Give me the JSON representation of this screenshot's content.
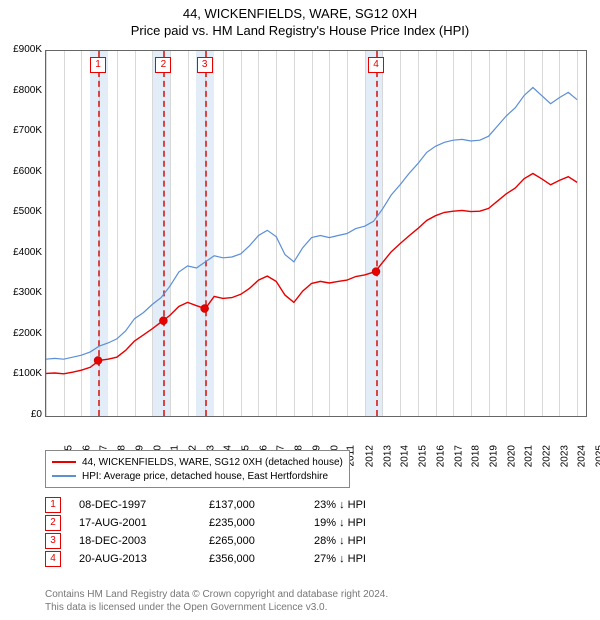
{
  "title": "44, WICKENFIELDS, WARE, SG12 0XH",
  "subtitle": "Price paid vs. HM Land Registry's House Price Index (HPI)",
  "chart": {
    "type": "line",
    "x_domain": [
      1995,
      2025.5
    ],
    "y_domain": [
      0,
      900000
    ],
    "y_ticks": [
      0,
      100000,
      200000,
      300000,
      400000,
      500000,
      600000,
      700000,
      800000,
      900000
    ],
    "y_tick_labels": [
      "£0",
      "£100K",
      "£200K",
      "£300K",
      "£400K",
      "£500K",
      "£600K",
      "£700K",
      "£800K",
      "£900K"
    ],
    "x_ticks": [
      1995,
      1996,
      1997,
      1998,
      1999,
      2000,
      2001,
      2002,
      2003,
      2004,
      2005,
      2006,
      2007,
      2008,
      2009,
      2010,
      2011,
      2012,
      2013,
      2014,
      2015,
      2016,
      2017,
      2018,
      2019,
      2020,
      2021,
      2022,
      2023,
      2024,
      2025
    ],
    "highlight_bands": [
      [
        1997.5,
        1998.5
      ],
      [
        2001,
        2002
      ],
      [
        2003.5,
        2004.5
      ],
      [
        2013,
        2014
      ]
    ],
    "grid_color": "#d8d8d8",
    "background_color": "#ffffff",
    "series": [
      {
        "name": "hpi",
        "color": "#5b8fd6",
        "width": 1.2,
        "points": [
          [
            1995,
            140000
          ],
          [
            1995.5,
            142000
          ],
          [
            1996,
            140000
          ],
          [
            1996.5,
            145000
          ],
          [
            1997,
            150000
          ],
          [
            1997.5,
            158000
          ],
          [
            1998,
            172000
          ],
          [
            1998.5,
            180000
          ],
          [
            1999,
            190000
          ],
          [
            1999.5,
            210000
          ],
          [
            2000,
            240000
          ],
          [
            2000.5,
            255000
          ],
          [
            2001,
            275000
          ],
          [
            2001.5,
            292000
          ],
          [
            2002,
            320000
          ],
          [
            2002.5,
            355000
          ],
          [
            2003,
            370000
          ],
          [
            2003.5,
            365000
          ],
          [
            2004,
            380000
          ],
          [
            2004.5,
            395000
          ],
          [
            2005,
            390000
          ],
          [
            2005.5,
            392000
          ],
          [
            2006,
            400000
          ],
          [
            2006.5,
            420000
          ],
          [
            2007,
            445000
          ],
          [
            2007.5,
            458000
          ],
          [
            2008,
            442000
          ],
          [
            2008.5,
            398000
          ],
          [
            2009,
            380000
          ],
          [
            2009.5,
            415000
          ],
          [
            2010,
            440000
          ],
          [
            2010.5,
            445000
          ],
          [
            2011,
            440000
          ],
          [
            2011.5,
            445000
          ],
          [
            2012,
            450000
          ],
          [
            2012.5,
            462000
          ],
          [
            2013,
            468000
          ],
          [
            2013.5,
            480000
          ],
          [
            2014,
            510000
          ],
          [
            2014.5,
            545000
          ],
          [
            2015,
            570000
          ],
          [
            2015.5,
            598000
          ],
          [
            2016,
            622000
          ],
          [
            2016.5,
            650000
          ],
          [
            2017,
            665000
          ],
          [
            2017.5,
            675000
          ],
          [
            2018,
            680000
          ],
          [
            2018.5,
            682000
          ],
          [
            2019,
            678000
          ],
          [
            2019.5,
            680000
          ],
          [
            2020,
            690000
          ],
          [
            2020.5,
            715000
          ],
          [
            2021,
            740000
          ],
          [
            2021.5,
            760000
          ],
          [
            2022,
            790000
          ],
          [
            2022.5,
            810000
          ],
          [
            2023,
            790000
          ],
          [
            2023.5,
            770000
          ],
          [
            2024,
            785000
          ],
          [
            2024.5,
            798000
          ],
          [
            2025,
            780000
          ]
        ]
      },
      {
        "name": "property",
        "color": "#e60000",
        "width": 1.4,
        "points": [
          [
            1995,
            105000
          ],
          [
            1995.5,
            106000
          ],
          [
            1996,
            104000
          ],
          [
            1996.5,
            108000
          ],
          [
            1997,
            113000
          ],
          [
            1997.5,
            120000
          ],
          [
            1998,
            137000
          ],
          [
            1998.5,
            140000
          ],
          [
            1999,
            145000
          ],
          [
            1999.5,
            162000
          ],
          [
            2000,
            185000
          ],
          [
            2000.5,
            200000
          ],
          [
            2001,
            215000
          ],
          [
            2001.6,
            235000
          ],
          [
            2002,
            248000
          ],
          [
            2002.5,
            270000
          ],
          [
            2003,
            280000
          ],
          [
            2003.5,
            272000
          ],
          [
            2004,
            265000
          ],
          [
            2004.5,
            295000
          ],
          [
            2005,
            290000
          ],
          [
            2005.5,
            292000
          ],
          [
            2006,
            300000
          ],
          [
            2006.5,
            315000
          ],
          [
            2007,
            335000
          ],
          [
            2007.5,
            345000
          ],
          [
            2008,
            332000
          ],
          [
            2008.5,
            298000
          ],
          [
            2009,
            280000
          ],
          [
            2009.5,
            308000
          ],
          [
            2010,
            327000
          ],
          [
            2010.5,
            332000
          ],
          [
            2011,
            328000
          ],
          [
            2011.5,
            332000
          ],
          [
            2012,
            335000
          ],
          [
            2012.5,
            344000
          ],
          [
            2013,
            348000
          ],
          [
            2013.6,
            356000
          ],
          [
            2014,
            378000
          ],
          [
            2014.5,
            405000
          ],
          [
            2015,
            425000
          ],
          [
            2015.5,
            444000
          ],
          [
            2016,
            462000
          ],
          [
            2016.5,
            482000
          ],
          [
            2017,
            494000
          ],
          [
            2017.5,
            502000
          ],
          [
            2018,
            505000
          ],
          [
            2018.5,
            507000
          ],
          [
            2019,
            504000
          ],
          [
            2019.5,
            505000
          ],
          [
            2020,
            512000
          ],
          [
            2020.5,
            530000
          ],
          [
            2021,
            548000
          ],
          [
            2021.5,
            562000
          ],
          [
            2022,
            585000
          ],
          [
            2022.5,
            598000
          ],
          [
            2023,
            585000
          ],
          [
            2023.5,
            570000
          ],
          [
            2024,
            581000
          ],
          [
            2024.5,
            590000
          ],
          [
            2025,
            576000
          ]
        ]
      }
    ],
    "sale_markers": [
      {
        "idx": "1",
        "x": 1997.94,
        "y": 137000
      },
      {
        "idx": "2",
        "x": 2001.63,
        "y": 235000
      },
      {
        "idx": "3",
        "x": 2003.96,
        "y": 265000
      },
      {
        "idx": "4",
        "x": 2013.64,
        "y": 356000
      }
    ]
  },
  "legend": {
    "items": [
      {
        "color": "#e60000",
        "label": "44, WICKENFIELDS, WARE, SG12 0XH (detached house)"
      },
      {
        "color": "#5b8fd6",
        "label": "HPI: Average price, detached house, East Hertfordshire"
      }
    ]
  },
  "sales_table": [
    {
      "idx": "1",
      "date": "08-DEC-1997",
      "price": "£137,000",
      "pct": "23% ↓ HPI"
    },
    {
      "idx": "2",
      "date": "17-AUG-2001",
      "price": "£235,000",
      "pct": "19% ↓ HPI"
    },
    {
      "idx": "3",
      "date": "18-DEC-2003",
      "price": "£265,000",
      "pct": "28% ↓ HPI"
    },
    {
      "idx": "4",
      "date": "20-AUG-2013",
      "price": "£356,000",
      "pct": "27% ↓ HPI"
    }
  ],
  "footer_line1": "Contains HM Land Registry data © Crown copyright and database right 2024.",
  "footer_line2": "This data is licensed under the Open Government Licence v3.0."
}
